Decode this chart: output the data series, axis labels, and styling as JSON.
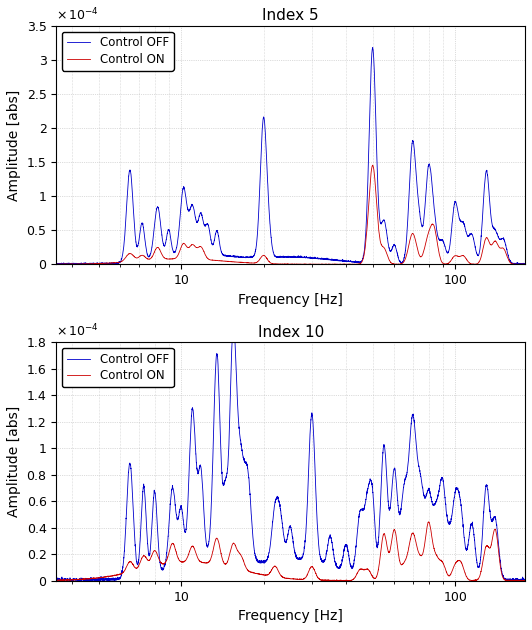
{
  "title1": "Index 5",
  "title2": "Index 10",
  "xlabel": "Frequency [Hz]",
  "ylabel": "Amplitude [abs]",
  "xlim": [
    3.5,
    180
  ],
  "ylim1": [
    0,
    0.00035
  ],
  "ylim2": [
    0,
    0.00018
  ],
  "yticks1": [
    0,
    5e-05,
    0.0001,
    0.00015,
    0.0002,
    0.00025,
    0.0003,
    0.00035
  ],
  "yticks2": [
    0,
    2e-05,
    4e-05,
    6e-05,
    8e-05,
    0.0001,
    0.00012,
    0.00014,
    0.00016,
    0.00018
  ],
  "ytick_labels1": [
    "0",
    "0.5",
    "1",
    "1.5",
    "2",
    "2.5",
    "3",
    "3.5"
  ],
  "ytick_labels2": [
    "0",
    "0.2",
    "0.4",
    "0.6",
    "0.8",
    "1",
    "1.2",
    "1.4",
    "1.6",
    "1.8"
  ],
  "color_off": "#0000cc",
  "color_on": "#cc0000",
  "legend_off": "Control OFF",
  "legend_on": "Control ON",
  "background_color": "#ffffff",
  "grid_color": "#bbbbbb",
  "linewidth": 0.6
}
